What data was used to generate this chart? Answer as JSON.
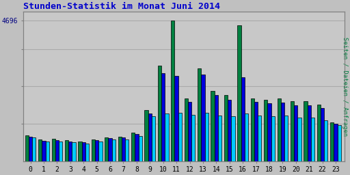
{
  "title": "Stunden-Statistik im Monat Juni 2014",
  "title_color": "#0000cc",
  "ylabel": "Seiten / Dateien / Anfragen",
  "ylabel_color": "#008040",
  "ytick_label": "4696",
  "ytick_color": "#000080",
  "background_color": "#c0c0c0",
  "plot_bg_color": "#c8c8c8",
  "bar_width": 0.27,
  "anfragen": [
    870,
    720,
    740,
    700,
    660,
    720,
    800,
    820,
    950,
    1700,
    3200,
    4696,
    2100,
    3100,
    2350,
    2200,
    4550,
    2100,
    2050,
    2100,
    2000,
    2000,
    1900,
    1300
  ],
  "seiten": [
    820,
    680,
    700,
    660,
    630,
    690,
    760,
    780,
    900,
    1600,
    2950,
    2850,
    1980,
    2900,
    2200,
    2050,
    2800,
    1980,
    1930,
    1960,
    1870,
    1870,
    1780,
    1240
  ],
  "dateien": [
    780,
    650,
    660,
    620,
    590,
    650,
    720,
    730,
    840,
    1500,
    1600,
    1620,
    1550,
    1620,
    1530,
    1500,
    1600,
    1530,
    1500,
    1520,
    1450,
    1450,
    1370,
    1200
  ],
  "color_anfragen": "#008040",
  "color_seiten": "#0000dd",
  "color_dateien": "#00ccff",
  "bar_edge_color": "#000000",
  "bar_linewidth": 0.5,
  "grid_color": "#aaaaaa",
  "grid_linewidth": 0.8,
  "figsize": [
    5.12,
    2.56
  ],
  "dpi": 100,
  "xlim": [
    -0.55,
    23.65
  ],
  "ylim": [
    0,
    5000
  ],
  "yticks": [
    1250,
    2500,
    3750,
    4696
  ],
  "xlabel_labels": [
    "0",
    "1",
    "2",
    "3",
    "4",
    "5",
    "6",
    "7",
    "8",
    "9",
    "10",
    "11",
    "12",
    "13",
    "14",
    "15",
    "16",
    "17",
    "18",
    "19",
    "20",
    "21",
    "22",
    "23"
  ]
}
